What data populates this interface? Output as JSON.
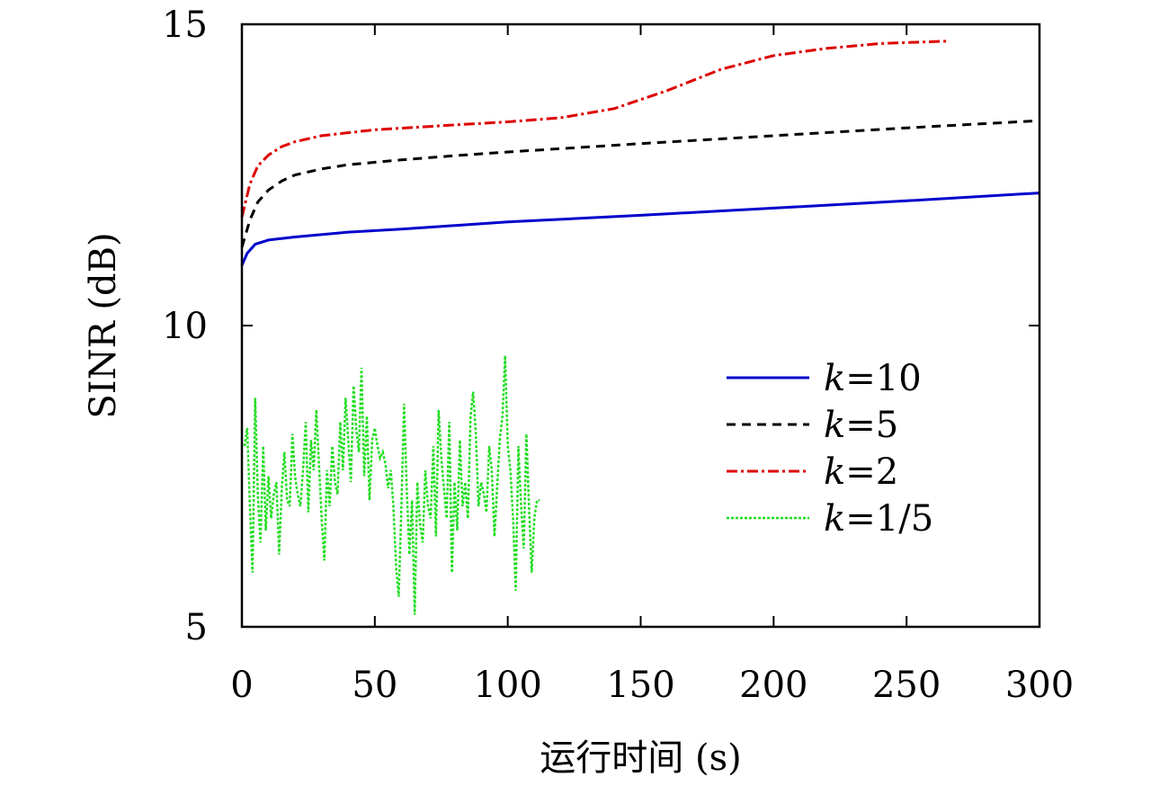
{
  "chart_data": {
    "type": "line",
    "xlabel": "运行时间 (s)",
    "ylabel": "SINR (dB)",
    "xlim": [
      0,
      300
    ],
    "ylim": [
      5,
      15
    ],
    "x_ticks": [
      0,
      50,
      100,
      150,
      200,
      250,
      300
    ],
    "y_ticks": [
      5,
      10,
      15
    ],
    "grid": false,
    "legend_position": "center-right",
    "series": [
      {
        "name": "k=10",
        "legend_italic": "k",
        "legend_rest": "=10",
        "color": "#0000cc",
        "dash": "solid",
        "x": [
          0,
          2,
          5,
          10,
          20,
          40,
          60,
          80,
          100,
          150,
          200,
          250,
          300
        ],
        "y": [
          11.0,
          11.2,
          11.35,
          11.42,
          11.47,
          11.55,
          11.6,
          11.66,
          11.72,
          11.83,
          11.95,
          12.07,
          12.2
        ]
      },
      {
        "name": "k=5",
        "legend_italic": "k",
        "legend_rest": "=5",
        "color": "#000000",
        "dash": "dashed",
        "x": [
          0,
          3,
          6,
          10,
          15,
          20,
          30,
          40,
          60,
          80,
          100,
          150,
          200,
          250,
          300
        ],
        "y": [
          11.3,
          11.75,
          12.05,
          12.25,
          12.4,
          12.5,
          12.6,
          12.67,
          12.75,
          12.82,
          12.88,
          13.02,
          13.15,
          13.28,
          13.4
        ]
      },
      {
        "name": "k=2",
        "legend_italic": "k",
        "legend_rest": "=2",
        "color": "#dd0000",
        "dash": "dashdot",
        "x": [
          0,
          3,
          6,
          10,
          15,
          20,
          30,
          50,
          80,
          100,
          120,
          140,
          160,
          180,
          200,
          220,
          240,
          265
        ],
        "y": [
          11.8,
          12.35,
          12.65,
          12.83,
          12.97,
          13.05,
          13.15,
          13.25,
          13.33,
          13.38,
          13.45,
          13.6,
          13.9,
          14.25,
          14.48,
          14.6,
          14.68,
          14.72
        ]
      },
      {
        "name": "k=1/5",
        "legend_italic": "k",
        "legend_rest": "=1/5",
        "color": "#22dd22",
        "dash": "dotted",
        "x": [
          1,
          2,
          3,
          4,
          5,
          6,
          7,
          8,
          9,
          10,
          11,
          12,
          13,
          14,
          15,
          16,
          17,
          18,
          19,
          20,
          21,
          22,
          23,
          24,
          25,
          26,
          27,
          28,
          29,
          30,
          31,
          32,
          33,
          34,
          35,
          36,
          37,
          38,
          39,
          40,
          41,
          42,
          43,
          44,
          45,
          46,
          47,
          48,
          49,
          50,
          51,
          52,
          53,
          54,
          55,
          56,
          57,
          58,
          59,
          60,
          61,
          62,
          63,
          64,
          65,
          66,
          67,
          68,
          69,
          70,
          71,
          72,
          73,
          74,
          75,
          76,
          77,
          78,
          79,
          80,
          81,
          82,
          83,
          84,
          85,
          86,
          87,
          88,
          89,
          90,
          91,
          92,
          93,
          94,
          95,
          96,
          97,
          98,
          99,
          100,
          101,
          102,
          103,
          104,
          105,
          106,
          107,
          108,
          109,
          110,
          111,
          112
        ],
        "y": [
          8.0,
          8.3,
          7.0,
          5.9,
          8.8,
          7.2,
          6.4,
          8.0,
          6.6,
          7.5,
          6.8,
          7.2,
          7.4,
          6.2,
          7.3,
          7.9,
          7.1,
          7.0,
          8.2,
          7.5,
          7.2,
          7.0,
          7.6,
          8.4,
          6.9,
          8.1,
          7.6,
          8.6,
          7.7,
          6.8,
          6.1,
          7.6,
          7.0,
          8.0,
          7.4,
          7.2,
          8.4,
          7.6,
          8.8,
          8.1,
          7.4,
          9.0,
          8.3,
          7.9,
          9.3,
          7.5,
          8.5,
          7.1,
          8.1,
          8.3,
          8.0,
          7.8,
          7.9,
          7.7,
          7.3,
          7.6,
          7.0,
          6.0,
          5.5,
          7.0,
          8.7,
          7.3,
          6.2,
          7.1,
          5.2,
          7.4,
          6.7,
          6.4,
          7.6,
          7.0,
          6.8,
          8.0,
          6.5,
          8.6,
          7.8,
          7.3,
          6.8,
          8.4,
          5.9,
          7.4,
          6.6,
          8.1,
          7.0,
          7.4,
          6.8,
          8.5,
          8.9,
          8.2,
          7.0,
          7.4,
          7.2,
          6.9,
          8.0,
          7.6,
          6.5,
          7.3,
          8.1,
          8.5,
          9.5,
          8.0,
          7.6,
          6.8,
          5.6,
          8.0,
          7.0,
          6.3,
          8.2,
          7.0,
          5.9,
          6.8,
          7.1,
          7.1
        ]
      }
    ]
  }
}
